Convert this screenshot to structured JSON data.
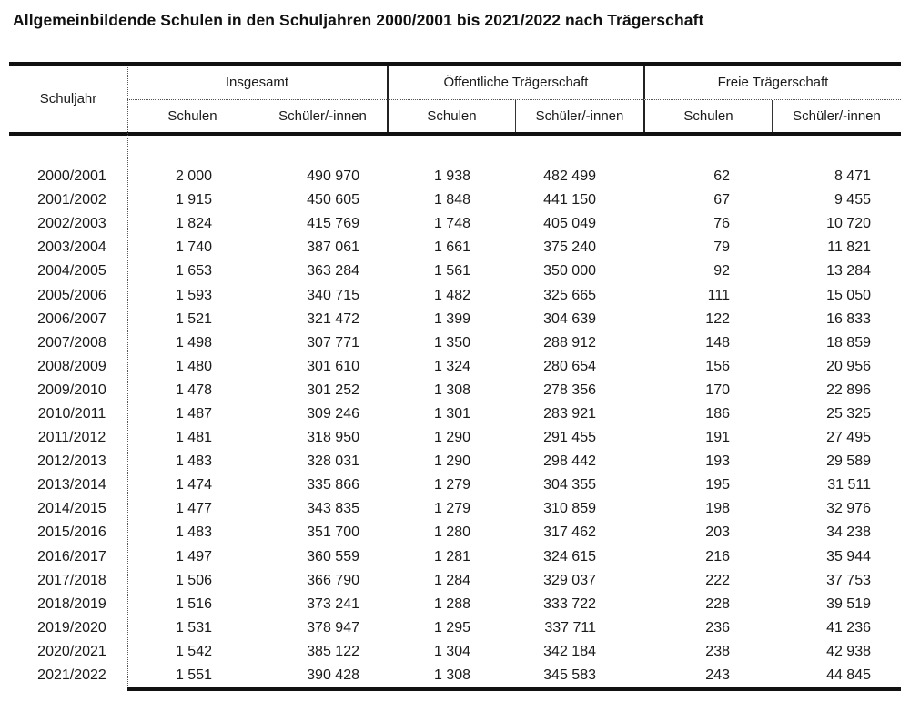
{
  "title": "Allgemeinbildende Schulen in den Schuljahren 2000/2001 bis 2021/2022 nach Trägerschaft",
  "colors": {
    "text": "#1a1a1a",
    "rule": "#111111",
    "background": "#ffffff"
  },
  "table": {
    "schuljahr_label": "Schuljahr",
    "groups": [
      {
        "label": "Insgesamt",
        "sub": [
          "Schulen",
          "Schüler/-innen"
        ]
      },
      {
        "label": "Öffentliche Trägerschaft",
        "sub": [
          "Schulen",
          "Schüler/-innen"
        ]
      },
      {
        "label": "Freie Trägerschaft",
        "sub": [
          "Schulen",
          "Schüler/-innen"
        ]
      }
    ],
    "rows": [
      [
        "2000/2001",
        "2 000",
        "490 970",
        "1 938",
        "482 499",
        "62",
        "8 471"
      ],
      [
        "2001/2002",
        "1 915",
        "450 605",
        "1 848",
        "441 150",
        "67",
        "9 455"
      ],
      [
        "2002/2003",
        "1 824",
        "415 769",
        "1 748",
        "405 049",
        "76",
        "10 720"
      ],
      [
        "2003/2004",
        "1 740",
        "387 061",
        "1 661",
        "375 240",
        "79",
        "11 821"
      ],
      [
        "2004/2005",
        "1 653",
        "363 284",
        "1 561",
        "350 000",
        "92",
        "13 284"
      ],
      [
        "2005/2006",
        "1 593",
        "340 715",
        "1 482",
        "325 665",
        "111",
        "15 050"
      ],
      [
        "2006/2007",
        "1 521",
        "321 472",
        "1 399",
        "304 639",
        "122",
        "16 833"
      ],
      [
        "2007/2008",
        "1 498",
        "307 771",
        "1 350",
        "288 912",
        "148",
        "18 859"
      ],
      [
        "2008/2009",
        "1 480",
        "301 610",
        "1 324",
        "280 654",
        "156",
        "20 956"
      ],
      [
        "2009/2010",
        "1 478",
        "301 252",
        "1 308",
        "278 356",
        "170",
        "22 896"
      ],
      [
        "2010/2011",
        "1 487",
        "309 246",
        "1 301",
        "283 921",
        "186",
        "25 325"
      ],
      [
        "2011/2012",
        "1 481",
        "318 950",
        "1 290",
        "291 455",
        "191",
        "27 495"
      ],
      [
        "2012/2013",
        "1 483",
        "328 031",
        "1 290",
        "298 442",
        "193",
        "29 589"
      ],
      [
        "2013/2014",
        "1 474",
        "335 866",
        "1 279",
        "304 355",
        "195",
        "31 511"
      ],
      [
        "2014/2015",
        "1 477",
        "343 835",
        "1 279",
        "310 859",
        "198",
        "32 976"
      ],
      [
        "2015/2016",
        "1 483",
        "351 700",
        "1 280",
        "317 462",
        "203",
        "34 238"
      ],
      [
        "2016/2017",
        "1 497",
        "360 559",
        "1 281",
        "324 615",
        "216",
        "35 944"
      ],
      [
        "2017/2018",
        "1 506",
        "366 790",
        "1 284",
        "329 037",
        "222",
        "37 753"
      ],
      [
        "2018/2019",
        "1 516",
        "373 241",
        "1 288",
        "333 722",
        "228",
        "39 519"
      ],
      [
        "2019/2020",
        "1 531",
        "378 947",
        "1 295",
        "337 711",
        "236",
        "41 236"
      ],
      [
        "2020/2021",
        "1 542",
        "385 122",
        "1 304",
        "342 184",
        "238",
        "42 938"
      ],
      [
        "2021/2022",
        "1 551",
        "390 428",
        "1 308",
        "345 583",
        "243",
        "44 845"
      ]
    ]
  }
}
